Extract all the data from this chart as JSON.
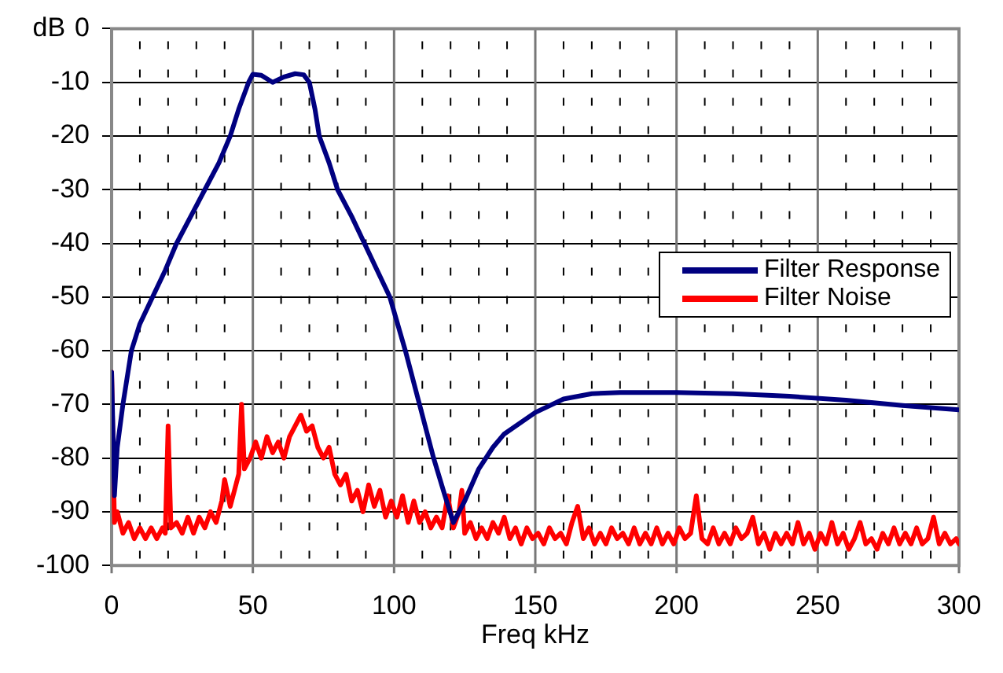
{
  "chart_data": {
    "type": "line",
    "xlabel": "Freq kHz",
    "ylabel": "dB",
    "xlim": [
      0,
      300
    ],
    "ylim": [
      -100,
      0
    ],
    "xticks": [
      0,
      {
        "value": 10,
        "label": null
      },
      {
        "value": 20,
        "label": null
      },
      {
        "value": 30,
        "label": null
      },
      {
        "value": 40,
        "label": null
      },
      50,
      {
        "value": 60,
        "label": null
      },
      {
        "value": 70,
        "label": null
      },
      {
        "value": 80,
        "label": null
      },
      {
        "value": 90,
        "label": null
      },
      100,
      {
        "value": 110,
        "label": null
      },
      {
        "value": 120,
        "label": null
      },
      {
        "value": 130,
        "label": null
      },
      {
        "value": 140,
        "label": null
      },
      150,
      {
        "value": 160,
        "label": null
      },
      {
        "value": 170,
        "label": null
      },
      {
        "value": 180,
        "label": null
      },
      {
        "value": 190,
        "label": null
      },
      200,
      {
        "value": 210,
        "label": null
      },
      {
        "value": 220,
        "label": null
      },
      {
        "value": 230,
        "label": null
      },
      {
        "value": 240,
        "label": null
      },
      250,
      {
        "value": 260,
        "label": null
      },
      {
        "value": 270,
        "label": null
      },
      {
        "value": 280,
        "label": null
      },
      {
        "value": 290,
        "label": null
      },
      300
    ],
    "yticks": [
      0,
      -10,
      -20,
      -30,
      -40,
      -50,
      -60,
      -70,
      -80,
      -90,
      -100
    ],
    "grid": true,
    "legend": "right",
    "series": [
      {
        "name": "Filter Response",
        "color": "#000080",
        "x": [
          0,
          1,
          2,
          4,
          7,
          10,
          14.5,
          19,
          23,
          28,
          33,
          38,
          42,
          45,
          48.5,
          50,
          53,
          57,
          61,
          65,
          68,
          70,
          72,
          73.5,
          77,
          80,
          85,
          89.5,
          94,
          98.5,
          104,
          109,
          114,
          118,
          121,
          125,
          130,
          135,
          139,
          150,
          160,
          170,
          180,
          200,
          220,
          240,
          260,
          280,
          300
        ],
        "values": [
          -64,
          -87,
          -78,
          -70,
          -60,
          -55,
          -50,
          -45,
          -40,
          -35,
          -30,
          -25,
          -20,
          -15,
          -10,
          -8.5,
          -8.7,
          -10,
          -9,
          -8.4,
          -8.6,
          -10,
          -15,
          -20,
          -25,
          -30,
          -35,
          -40,
          -45,
          -50,
          -60,
          -70,
          -80,
          -87,
          -92,
          -88,
          -82,
          -78,
          -75.5,
          -71.5,
          -69,
          -68,
          -67.8,
          -67.8,
          -68,
          -68.5,
          -69.2,
          -70.2,
          -71
        ]
      },
      {
        "name": "Filter Noise",
        "color": "#ff0000",
        "x": [
          0,
          1,
          2,
          4,
          6,
          8,
          10,
          12,
          14,
          16,
          18,
          19,
          20,
          21,
          23,
          25,
          27,
          29,
          31,
          33,
          35,
          37,
          39,
          40,
          42,
          44,
          45,
          46,
          47,
          49,
          51,
          53,
          55,
          57,
          59,
          61,
          63,
          65,
          67,
          69,
          71,
          73,
          75,
          77,
          79,
          81,
          83,
          85,
          87,
          89,
          91,
          93,
          95,
          97,
          99,
          101,
          103,
          105,
          107,
          109,
          111,
          113,
          115,
          117,
          119,
          121,
          123,
          124,
          125,
          127,
          129,
          131,
          133,
          135,
          137,
          139,
          141,
          143,
          145,
          147,
          149,
          151,
          153,
          155,
          157,
          159,
          161,
          163,
          165,
          167,
          169,
          171,
          173,
          175,
          177,
          179,
          181,
          183,
          185,
          187,
          189,
          191,
          193,
          195,
          197,
          199,
          201,
          203,
          205,
          207,
          209,
          211,
          213,
          215,
          217,
          219,
          221,
          223,
          225,
          227,
          229,
          231,
          233,
          235,
          237,
          239,
          241,
          243,
          245,
          247,
          249,
          251,
          253,
          255,
          257,
          259,
          261,
          263,
          265,
          267,
          269,
          271,
          273,
          275,
          277,
          279,
          281,
          283,
          285,
          287,
          289,
          291,
          293,
          295,
          297,
          299,
          300
        ],
        "values": [
          -64,
          -92,
          -90,
          -94,
          -92,
          -95,
          -93,
          -95,
          -93,
          -95,
          -93,
          -94,
          -74,
          -93,
          -92,
          -94,
          -91,
          -94,
          -91,
          -93,
          -90,
          -92,
          -88,
          -84,
          -89,
          -85,
          -83,
          -70,
          -82,
          -80,
          -77,
          -80,
          -76,
          -79,
          -77,
          -80,
          -76,
          -74,
          -72,
          -75,
          -74,
          -78,
          -80,
          -78,
          -83,
          -85,
          -83,
          -88,
          -86,
          -90,
          -85,
          -89,
          -86,
          -91,
          -88,
          -91,
          -87,
          -92,
          -88,
          -92,
          -90,
          -93,
          -91,
          -93,
          -87,
          -93,
          -90,
          -86,
          -94,
          -92,
          -95,
          -93,
          -95,
          -92,
          -94,
          -91,
          -95,
          -93,
          -96,
          -93,
          -95,
          -94,
          -96,
          -93,
          -95,
          -94,
          -96,
          -92,
          -89,
          -95,
          -93,
          -96,
          -94,
          -96,
          -93,
          -95,
          -94,
          -96,
          -93,
          -96,
          -94,
          -96,
          -93,
          -96,
          -94,
          -96,
          -93,
          -95,
          -94,
          -87,
          -95,
          -96,
          -93,
          -96,
          -94,
          -96,
          -93,
          -95,
          -94,
          -91,
          -96,
          -94,
          -97,
          -94,
          -96,
          -94,
          -96,
          -92,
          -96,
          -94,
          -97,
          -94,
          -96,
          -92,
          -96,
          -94,
          -97,
          -95,
          -92,
          -96,
          -95,
          -97,
          -94,
          -96,
          -93,
          -96,
          -94,
          -96,
          -93,
          -96,
          -95,
          -91,
          -96,
          -94,
          -96,
          -95,
          -96
        ]
      }
    ]
  }
}
